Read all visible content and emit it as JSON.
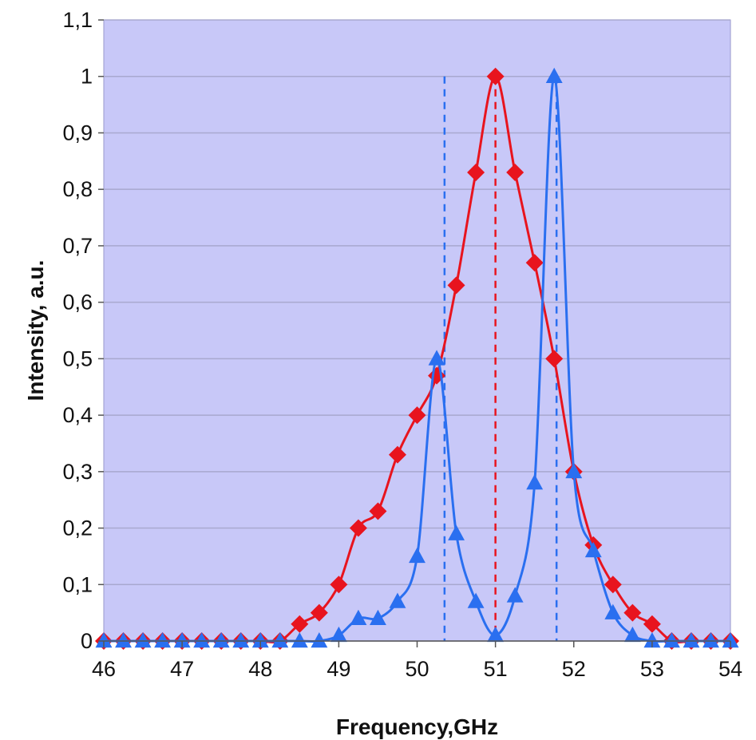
{
  "chart_data": {
    "type": "line",
    "xlabel": "Frequency,GHz",
    "ylabel": "Intensity, a.u.",
    "xlim": [
      46,
      54
    ],
    "ylim": [
      0,
      1.1
    ],
    "x_ticks": [
      "46",
      "47",
      "48",
      "49",
      "50",
      "51",
      "52",
      "53",
      "54"
    ],
    "y_ticks": [
      "0",
      "0,1",
      "0,2",
      "0,3",
      "0,4",
      "0,5",
      "0,6",
      "0,7",
      "0,8",
      "0,9",
      "1",
      "1,1"
    ],
    "grid": "horizontal",
    "plot_background": "#c8c8f8",
    "series": [
      {
        "color": "#e8141e",
        "marker": "diamond",
        "x": [
          46,
          46.25,
          46.5,
          46.75,
          47,
          47.25,
          47.5,
          47.75,
          48,
          48.25,
          48.5,
          48.75,
          49,
          49.25,
          49.5,
          49.75,
          50,
          50.25,
          50.5,
          50.75,
          51,
          51.25,
          51.5,
          51.75,
          52,
          52.25,
          52.5,
          52.75,
          53,
          53.25,
          53.5,
          53.75,
          54
        ],
        "values": [
          0,
          0,
          0,
          0,
          0,
          0,
          0,
          0,
          0,
          0,
          0.03,
          0.05,
          0.1,
          0.2,
          0.23,
          0.33,
          0.4,
          0.47,
          0.63,
          0.83,
          1.0,
          0.83,
          0.67,
          0.5,
          0.3,
          0.17,
          0.1,
          0.05,
          0.03,
          0,
          0,
          0,
          0
        ]
      },
      {
        "color": "#2a6ff0",
        "marker": "triangle",
        "x": [
          46,
          46.25,
          46.5,
          46.75,
          47,
          47.25,
          47.5,
          47.75,
          48,
          48.25,
          48.5,
          48.75,
          49,
          49.25,
          49.5,
          49.75,
          50,
          50.25,
          50.5,
          50.75,
          51,
          51.25,
          51.5,
          51.75,
          52,
          52.25,
          52.5,
          52.75,
          53,
          53.25,
          53.5,
          53.75,
          54
        ],
        "values": [
          0,
          0,
          0,
          0,
          0,
          0,
          0,
          0,
          0,
          0,
          0,
          0,
          0.01,
          0.04,
          0.04,
          0.07,
          0.15,
          0.5,
          0.19,
          0.07,
          0.01,
          0.08,
          0.28,
          1.0,
          0.3,
          0.16,
          0.05,
          0.01,
          0,
          0,
          0,
          0,
          0
        ]
      }
    ],
    "dashed_markers": [
      {
        "x": 50.35,
        "color": "#2a6ff0"
      },
      {
        "x": 51.0,
        "color": "#e8141e"
      },
      {
        "x": 51.78,
        "color": "#2a6ff0"
      }
    ]
  }
}
